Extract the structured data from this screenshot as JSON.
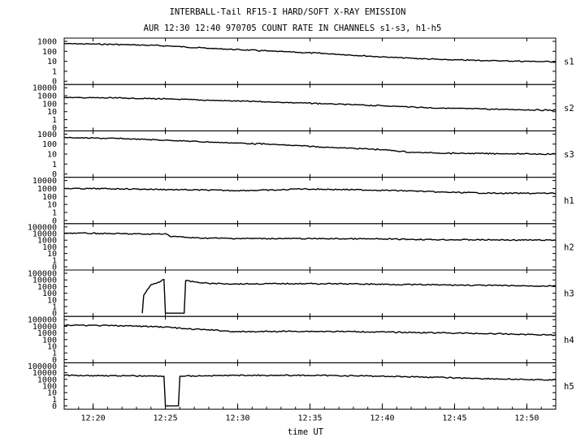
{
  "chart_data": {
    "type": "line",
    "title": "INTERBALL-Tail RF15-I HARD/SOFT X-RAY EMISSION",
    "subtitle": "AUR 12:30 12:40 970705  COUNT RATE IN CHANNELS s1-s3, h1-h5",
    "xlabel": "time UT",
    "xlim": [
      "12:18",
      "12:52"
    ],
    "x_ticks": [
      "12:20",
      "12:25",
      "12:30",
      "12:35",
      "12:40",
      "12:45",
      "12:50"
    ],
    "y_scale": "log",
    "line_color": "#000000",
    "panels": [
      {
        "name": "s1",
        "y_ticks": [
          "1000",
          "100",
          "10",
          "1",
          "0"
        ],
        "points": [
          [
            "12:18",
            600
          ],
          [
            "12:22",
            480
          ],
          [
            "12:25",
            360
          ],
          [
            "12:28",
            200
          ],
          [
            "12:32",
            110
          ],
          [
            "12:36",
            60
          ],
          [
            "12:40",
            28
          ],
          [
            "12:44",
            15
          ],
          [
            "12:47",
            12
          ],
          [
            "12:50",
            10
          ],
          [
            "12:52",
            9
          ]
        ]
      },
      {
        "name": "s2",
        "y_ticks": [
          "10000",
          "1000",
          "100",
          "10",
          "1",
          "0"
        ],
        "points": [
          [
            "12:18",
            600
          ],
          [
            "12:22",
            500
          ],
          [
            "12:25",
            400
          ],
          [
            "12:28",
            270
          ],
          [
            "12:32",
            170
          ],
          [
            "12:36",
            100
          ],
          [
            "12:40",
            55
          ],
          [
            "12:44",
            28
          ],
          [
            "12:48",
            20
          ],
          [
            "12:52",
            15
          ]
        ]
      },
      {
        "name": "s3",
        "y_ticks": [
          "1000",
          "100",
          "10",
          "1",
          "0"
        ],
        "points": [
          [
            "12:18",
            450
          ],
          [
            "12:22",
            350
          ],
          [
            "12:25",
            250
          ],
          [
            "12:28",
            160
          ],
          [
            "12:32",
            100
          ],
          [
            "12:36",
            50
          ],
          [
            "12:40",
            28
          ],
          [
            "12:42",
            15
          ],
          [
            "12:45",
            12
          ],
          [
            "12:48",
            11
          ],
          [
            "12:52",
            10
          ]
        ]
      },
      {
        "name": "h1",
        "y_ticks": [
          "10000",
          "1000",
          "100",
          "10",
          "1",
          "0"
        ],
        "points": [
          [
            "12:18",
            1000
          ],
          [
            "12:22",
            900
          ],
          [
            "12:26",
            700
          ],
          [
            "12:30",
            550
          ],
          [
            "12:33",
            650
          ],
          [
            "12:34",
            900
          ],
          [
            "12:38",
            700
          ],
          [
            "12:42",
            500
          ],
          [
            "12:44",
            350
          ],
          [
            "12:48",
            250
          ],
          [
            "12:52",
            250
          ]
        ]
      },
      {
        "name": "h2",
        "y_ticks": [
          "100000",
          "10000",
          "1000",
          "100",
          "10",
          "1",
          "0"
        ],
        "points": [
          [
            "12:18",
            12000
          ],
          [
            "12:21",
            10000
          ],
          [
            "12:24",
            8000
          ],
          [
            "12:25",
            10000
          ],
          [
            "12:25.3",
            4000
          ],
          [
            "12:27",
            2200
          ],
          [
            "12:30",
            1800
          ],
          [
            "12:36",
            1700
          ],
          [
            "12:40",
            1500
          ],
          [
            "12:44",
            1200
          ],
          [
            "12:48",
            1100
          ],
          [
            "12:52",
            1000
          ]
        ]
      },
      {
        "name": "h3",
        "y_ticks": [
          "100000",
          "10000",
          "1000",
          "100",
          "10",
          "1",
          "0"
        ],
        "points": [
          [
            "12:23.4",
            0
          ],
          [
            "12:23.5",
            50
          ],
          [
            "12:24",
            2000
          ],
          [
            "12:24.6",
            5000
          ],
          [
            "12:24.9",
            12000
          ],
          [
            "12:25",
            0
          ],
          [
            "12:26.3",
            0
          ],
          [
            "12:26.4",
            8000
          ],
          [
            "12:27",
            5000
          ],
          [
            "12:28",
            3000
          ],
          [
            "12:30",
            2500
          ],
          [
            "12:34",
            2800
          ],
          [
            "12:38",
            2500
          ],
          [
            "12:42",
            2000
          ],
          [
            "12:46",
            1600
          ],
          [
            "12:50",
            1300
          ],
          [
            "12:52",
            1200
          ]
        ]
      },
      {
        "name": "h4",
        "y_ticks": [
          "100000",
          "10000",
          "1000",
          "100",
          "10",
          "1",
          "0"
        ],
        "points": [
          [
            "12:18",
            15000
          ],
          [
            "12:22",
            12000
          ],
          [
            "12:25",
            8000
          ],
          [
            "12:26.5",
            4000
          ],
          [
            "12:28",
            3000
          ],
          [
            "12:30",
            1500
          ],
          [
            "12:34",
            1800
          ],
          [
            "12:38",
            1600
          ],
          [
            "12:42",
            1200
          ],
          [
            "12:46",
            900
          ],
          [
            "12:50",
            600
          ],
          [
            "12:52",
            500
          ]
        ]
      },
      {
        "name": "h5",
        "y_ticks": [
          "100000",
          "10000",
          "1000",
          "100",
          "10",
          "1",
          "0"
        ],
        "points": [
          [
            "12:18",
            4000
          ],
          [
            "12:22",
            3500
          ],
          [
            "12:24.9",
            3000
          ],
          [
            "12:25",
            0
          ],
          [
            "12:25.9",
            0
          ],
          [
            "12:26",
            3000
          ],
          [
            "12:28",
            3500
          ],
          [
            "12:30",
            4000
          ],
          [
            "12:34",
            4000
          ],
          [
            "12:38",
            3500
          ],
          [
            "12:42",
            2500
          ],
          [
            "12:46",
            1500
          ],
          [
            "12:50",
            900
          ],
          [
            "12:52",
            800
          ]
        ]
      }
    ]
  }
}
